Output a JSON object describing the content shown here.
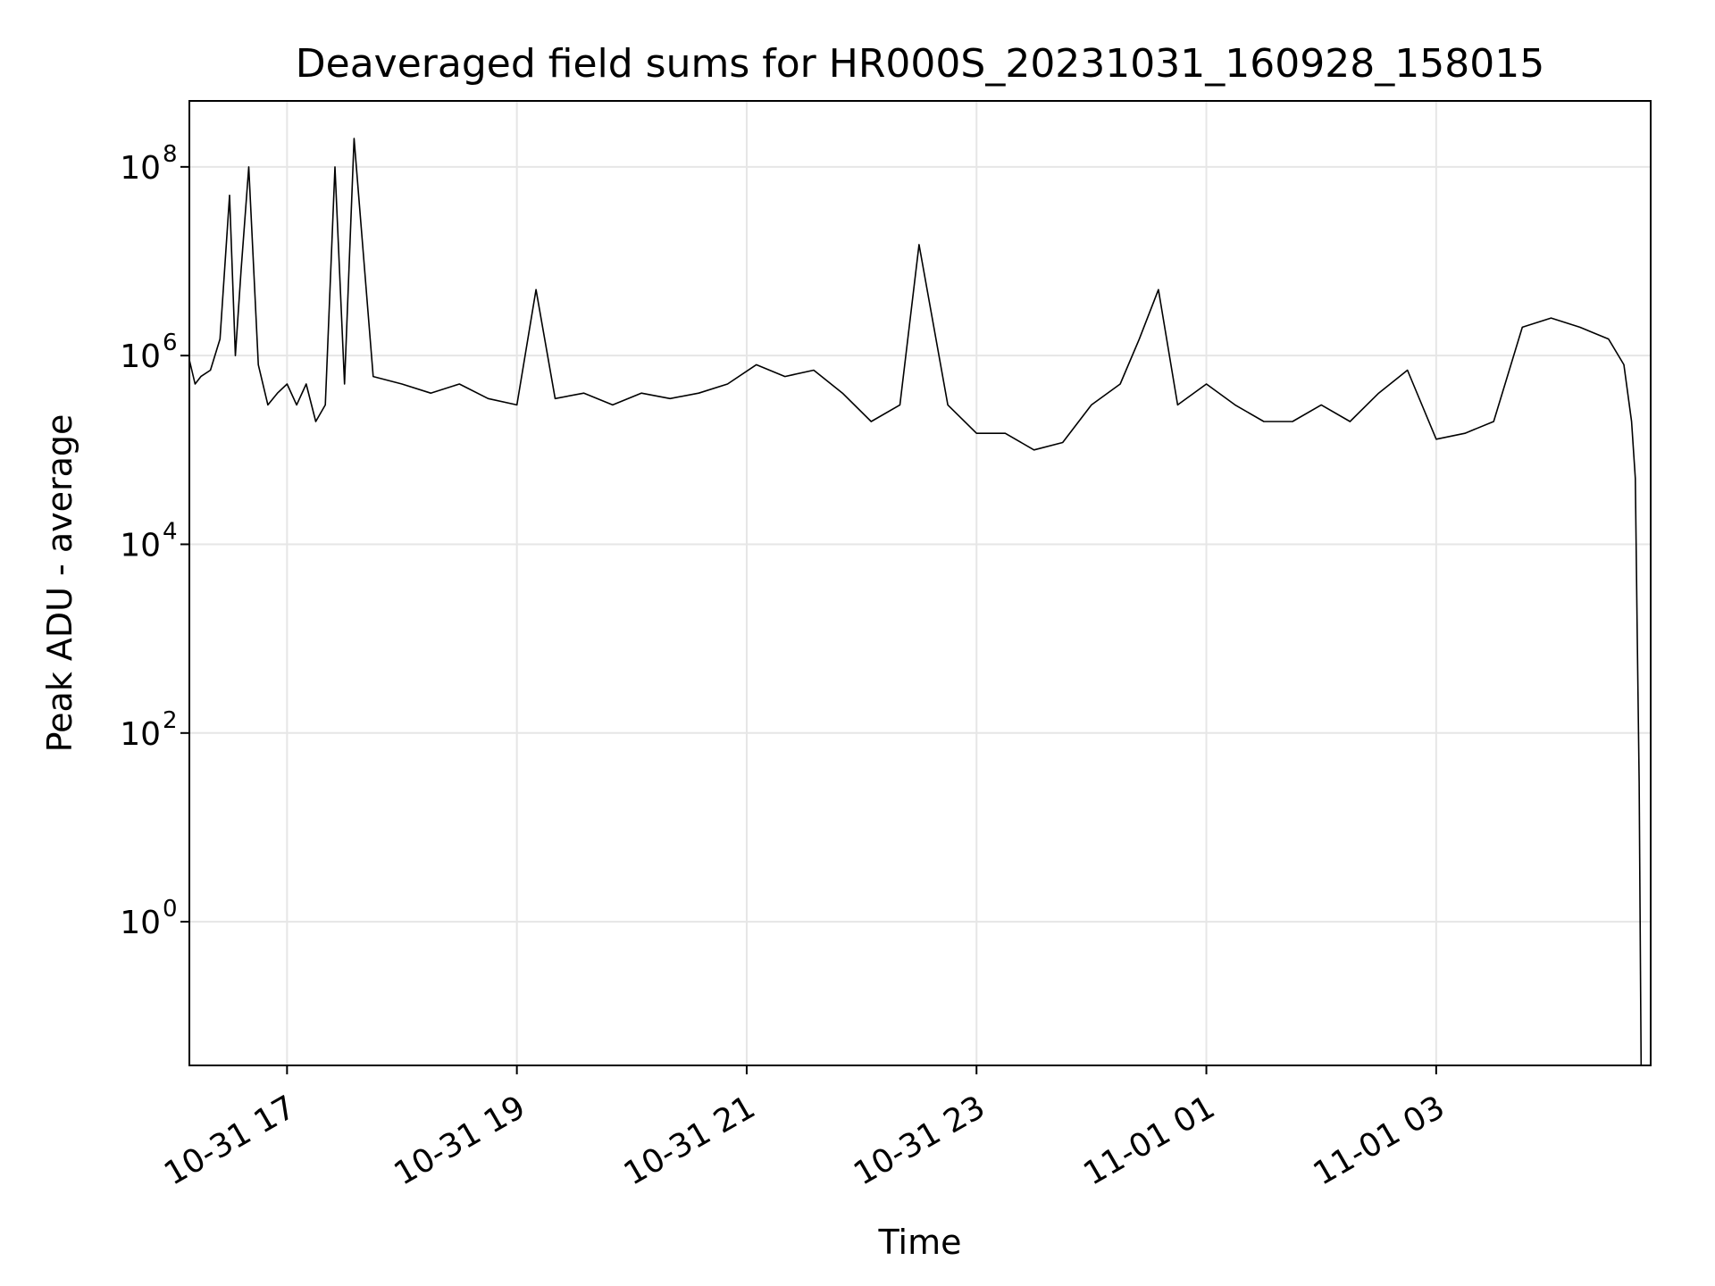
{
  "chart_data": {
    "type": "line",
    "title": "Deaveraged field sums for HR000S_20231031_160928_158015",
    "xlabel": "Time",
    "ylabel": "Peak ADU - average",
    "yscale": "log",
    "grid": true,
    "legend": "none",
    "colors": {
      "line": "#000000",
      "grid": "#e6e6e6",
      "axes": "#000000"
    },
    "xlim": [
      "2023-10-31 16:09",
      "2023-11-01 04:52"
    ],
    "ylim": [
      0.03,
      500000000.0
    ],
    "xticks": [
      {
        "t": "2023-10-31 17:00",
        "label": "10-31 17"
      },
      {
        "t": "2023-10-31 19:00",
        "label": "10-31 19"
      },
      {
        "t": "2023-10-31 21:00",
        "label": "10-31 21"
      },
      {
        "t": "2023-10-31 23:00",
        "label": "10-31 23"
      },
      {
        "t": "2023-11-01 01:00",
        "label": "11-01 01"
      },
      {
        "t": "2023-11-01 03:00",
        "label": "11-01 03"
      }
    ],
    "yticks": [
      {
        "v": 1,
        "base": "10",
        "exp": "0"
      },
      {
        "v": 100,
        "base": "10",
        "exp": "2"
      },
      {
        "v": 10000,
        "base": "10",
        "exp": "4"
      },
      {
        "v": 1000000,
        "base": "10",
        "exp": "6"
      },
      {
        "v": 100000000,
        "base": "10",
        "exp": "8"
      }
    ],
    "series": [
      {
        "x": [
          "2023-10-31 16:09",
          "2023-10-31 16:12",
          "2023-10-31 16:15",
          "2023-10-31 16:20",
          "2023-10-31 16:25",
          "2023-10-31 16:30",
          "2023-10-31 16:33",
          "2023-10-31 16:36",
          "2023-10-31 16:40",
          "2023-10-31 16:45",
          "2023-10-31 16:50",
          "2023-10-31 16:55",
          "2023-10-31 17:00",
          "2023-10-31 17:05",
          "2023-10-31 17:10",
          "2023-10-31 17:15",
          "2023-10-31 17:20",
          "2023-10-31 17:25",
          "2023-10-31 17:30",
          "2023-10-31 17:35",
          "2023-10-31 17:45",
          "2023-10-31 18:00",
          "2023-10-31 18:15",
          "2023-10-31 18:30",
          "2023-10-31 18:45",
          "2023-10-31 19:00",
          "2023-10-31 19:10",
          "2023-10-31 19:20",
          "2023-10-31 19:35",
          "2023-10-31 19:50",
          "2023-10-31 20:05",
          "2023-10-31 20:20",
          "2023-10-31 20:35",
          "2023-10-31 20:50",
          "2023-10-31 21:05",
          "2023-10-31 21:20",
          "2023-10-31 21:35",
          "2023-10-31 21:50",
          "2023-10-31 22:05",
          "2023-10-31 22:20",
          "2023-10-31 22:30",
          "2023-10-31 22:45",
          "2023-10-31 23:00",
          "2023-10-31 23:15",
          "2023-10-31 23:30",
          "2023-10-31 23:45",
          "2023-11-01 00:00",
          "2023-11-01 00:15",
          "2023-11-01 00:25",
          "2023-11-01 00:35",
          "2023-11-01 00:45",
          "2023-11-01 01:00",
          "2023-11-01 01:15",
          "2023-11-01 01:30",
          "2023-11-01 01:45",
          "2023-11-01 02:00",
          "2023-11-01 02:15",
          "2023-11-01 02:30",
          "2023-11-01 02:45",
          "2023-11-01 03:00",
          "2023-11-01 03:15",
          "2023-11-01 03:30",
          "2023-11-01 03:45",
          "2023-11-01 04:00",
          "2023-11-01 04:15",
          "2023-11-01 04:30",
          "2023-11-01 04:38",
          "2023-11-01 04:42",
          "2023-11-01 04:44",
          "2023-11-01 04:45",
          "2023-11-01 04:46",
          "2023-11-01 04:47"
        ],
        "y": [
          900000,
          500000,
          600000,
          700000,
          1500000,
          50000000,
          1000000,
          8000000,
          100000000,
          800000,
          300000,
          400000,
          500000,
          300000,
          500000,
          200000,
          300000,
          100000000,
          500000,
          200000000,
          600000,
          500000,
          400000,
          500000,
          350000,
          300000,
          5000000,
          350000,
          400000,
          300000,
          400000,
          350000,
          400000,
          500000,
          800000,
          600000,
          700000,
          400000,
          200000,
          300000,
          15000000,
          300000,
          150000,
          150000,
          100000,
          120000,
          300000,
          500000,
          1500000,
          5000000,
          300000,
          500000,
          300000,
          200000,
          200000,
          300000,
          200000,
          400000,
          700000,
          130000,
          150000,
          200000,
          2000000,
          2500000,
          2000000,
          1500000,
          800000,
          200000,
          50000,
          1000,
          30,
          0.03
        ]
      }
    ]
  }
}
